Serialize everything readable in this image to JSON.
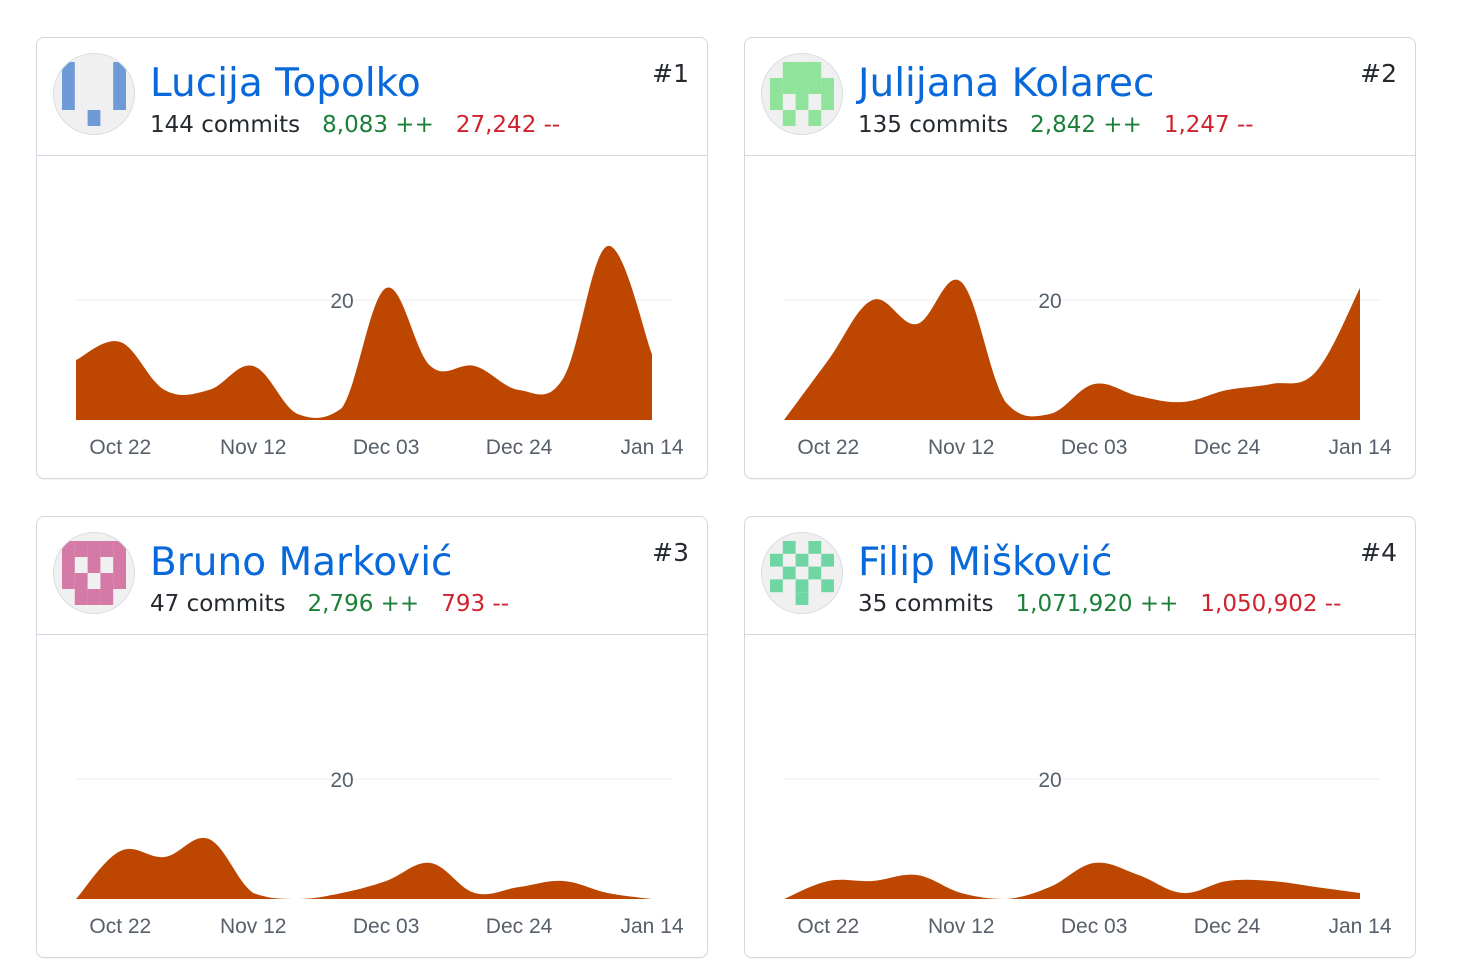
{
  "colors": {
    "area": "#bd4700",
    "name_link": "#0969da",
    "additions": "#1a7f37",
    "deletions": "#cf222e",
    "grid": "#eaeef2"
  },
  "contributors": [
    {
      "name": "Lucija Topolko",
      "commits": "144 commits",
      "additions": "8,083 ++",
      "deletions": "27,242 --",
      "rank": "#1",
      "avatar": {
        "icon": "identicon-avatar",
        "color": "#6f9ad8",
        "cells": [
          [
            1,
            0,
            0,
            0,
            1
          ],
          [
            1,
            0,
            0,
            0,
            1
          ],
          [
            1,
            0,
            0,
            0,
            1
          ],
          [
            0,
            0,
            1,
            0,
            0
          ]
        ]
      }
    },
    {
      "name": "Julijana Kolarec",
      "commits": "135 commits",
      "additions": "2,842 ++",
      "deletions": "1,247 --",
      "rank": "#2",
      "avatar": {
        "icon": "identicon-avatar",
        "color": "#8fe39a",
        "cells": [
          [
            0,
            1,
            1,
            1,
            0
          ],
          [
            1,
            1,
            1,
            1,
            1
          ],
          [
            1,
            0,
            1,
            0,
            1
          ],
          [
            0,
            1,
            0,
            1,
            0
          ]
        ]
      }
    },
    {
      "name": "Bruno Marković",
      "commits": "47 commits",
      "additions": "2,796 ++",
      "deletions": "793 --",
      "rank": "#3",
      "avatar": {
        "icon": "identicon-avatar",
        "color": "#d57aa6",
        "cells": [
          [
            1,
            1,
            1,
            1,
            1
          ],
          [
            1,
            0,
            1,
            0,
            1
          ],
          [
            1,
            1,
            0,
            1,
            1
          ],
          [
            0,
            1,
            1,
            1,
            0
          ]
        ]
      }
    },
    {
      "name": "Filip Mišković",
      "commits": "35 commits",
      "additions": "1,071,920 ++",
      "deletions": "1,050,902 --",
      "rank": "#4",
      "avatar": {
        "icon": "identicon-avatar",
        "color": "#6fd6a3",
        "cells": [
          [
            0,
            1,
            0,
            1,
            0
          ],
          [
            1,
            0,
            1,
            0,
            1
          ],
          [
            0,
            1,
            0,
            1,
            0
          ],
          [
            1,
            0,
            1,
            0,
            1
          ],
          [
            0,
            0,
            1,
            0,
            0
          ]
        ]
      }
    }
  ],
  "chart_data": [
    {
      "type": "area",
      "x": [
        "Oct 15",
        "Oct 22",
        "Oct 29",
        "Nov 05",
        "Nov 12",
        "Nov 19",
        "Nov 26",
        "Dec 03",
        "Dec 10",
        "Dec 17",
        "Dec 24",
        "Dec 31",
        "Jan 07",
        "Jan 14"
      ],
      "values": [
        10,
        13,
        5,
        5,
        9,
        1,
        2,
        22,
        9,
        9,
        5,
        7,
        29,
        11
      ],
      "x_ticks": [
        "Oct 22",
        "Nov 12",
        "Dec 03",
        "Dec 24",
        "Jan 14"
      ],
      "y_ticks": [
        "20"
      ],
      "ylim": [
        0,
        30
      ],
      "grid": true
    },
    {
      "type": "area",
      "x": [
        "Oct 15",
        "Oct 22",
        "Oct 29",
        "Nov 05",
        "Nov 12",
        "Nov 19",
        "Nov 26",
        "Dec 03",
        "Dec 10",
        "Dec 17",
        "Dec 24",
        "Dec 31",
        "Jan 07",
        "Jan 14"
      ],
      "values": [
        0,
        10,
        20,
        16,
        23,
        3,
        1,
        6,
        4,
        3,
        5,
        6,
        8,
        22
      ],
      "x_ticks": [
        "Oct 22",
        "Nov 12",
        "Dec 03",
        "Dec 24",
        "Jan 14"
      ],
      "y_ticks": [
        "20"
      ],
      "ylim": [
        0,
        30
      ],
      "grid": true
    },
    {
      "type": "area",
      "x": [
        "Oct 15",
        "Oct 22",
        "Oct 29",
        "Nov 05",
        "Nov 12",
        "Nov 19",
        "Nov 26",
        "Dec 03",
        "Dec 10",
        "Dec 17",
        "Dec 24",
        "Dec 31",
        "Jan 07",
        "Jan 14"
      ],
      "values": [
        0,
        8,
        7,
        10,
        1,
        0,
        1,
        3,
        6,
        1,
        2,
        3,
        1,
        0
      ],
      "x_ticks": [
        "Oct 22",
        "Nov 12",
        "Dec 03",
        "Dec 24",
        "Jan 14"
      ],
      "y_ticks": [
        "20"
      ],
      "ylim": [
        0,
        30
      ],
      "grid": true
    },
    {
      "type": "area",
      "x": [
        "Oct 15",
        "Oct 22",
        "Oct 29",
        "Nov 05",
        "Nov 12",
        "Nov 19",
        "Nov 26",
        "Dec 03",
        "Dec 10",
        "Dec 17",
        "Dec 24",
        "Dec 31",
        "Jan 07",
        "Jan 14"
      ],
      "values": [
        0,
        3,
        3,
        4,
        1,
        0,
        2,
        6,
        4,
        1,
        3,
        3,
        2,
        1
      ],
      "x_ticks": [
        "Oct 22",
        "Nov 12",
        "Dec 03",
        "Dec 24",
        "Jan 14"
      ],
      "y_ticks": [
        "20"
      ],
      "ylim": [
        0,
        30
      ],
      "grid": true
    }
  ]
}
